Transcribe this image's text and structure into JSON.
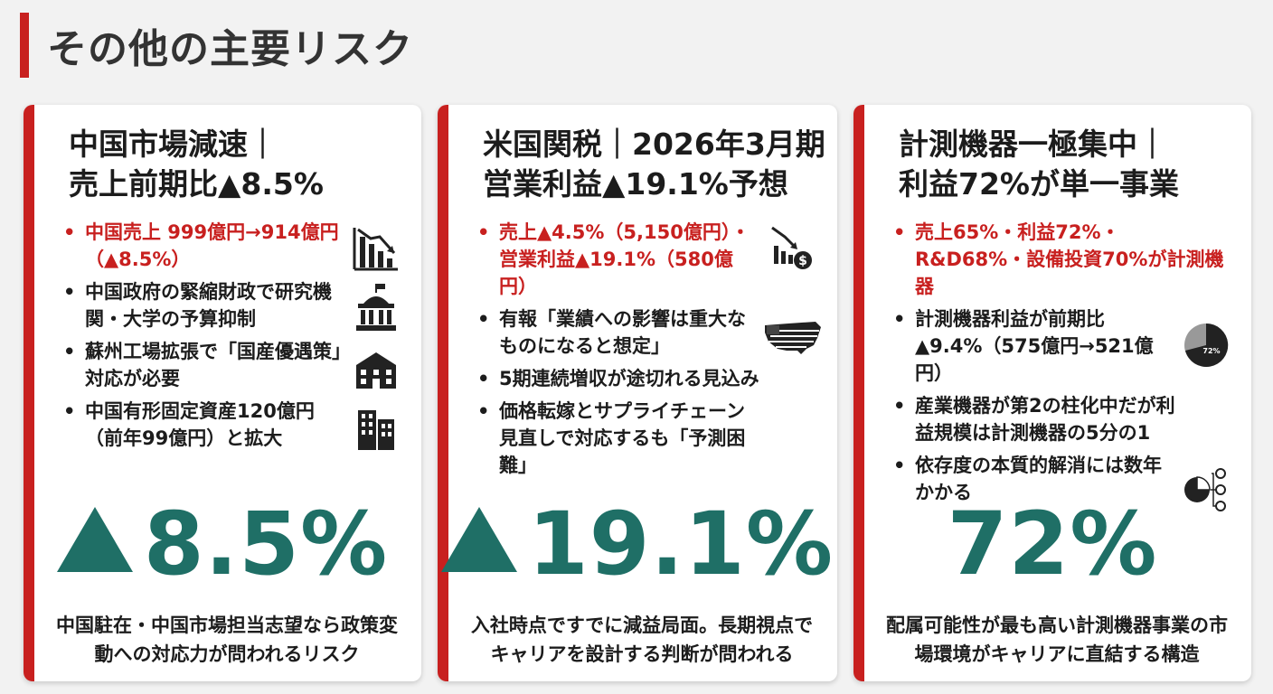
{
  "page": {
    "title": "その他の主要リスク"
  },
  "colors": {
    "accent": "#c8201f",
    "teal": "#1f6f66",
    "text": "#1c1c1c"
  },
  "cards": [
    {
      "head": [
        "中国市場減速｜",
        "売上前期比▲8.5%"
      ],
      "bullets": [
        {
          "text": "中国売上 999億円→914億円（▲8.5%）",
          "red": true,
          "icon": "declining-bar-chart-icon"
        },
        {
          "text": "中国政府の緊縮財政で研究機関・大学の予算抑制",
          "red": false,
          "icon": "government-building-icon"
        },
        {
          "text": "蘇州工場拡張で「国産優遇策」対応が必要",
          "red": false,
          "icon": "factory-icon"
        },
        {
          "text": "中国有形固定資産120億円（前年99億円）と拡大",
          "red": false,
          "icon": "office-building-icon"
        }
      ],
      "big": "8.5%",
      "big_has_triangle": true,
      "foot": "中国駐在・中国市場担当志望なら政策変動への対応力が問われるリスク"
    },
    {
      "head": [
        "米国関税｜2026年3月期",
        "営業利益▲19.1%予想"
      ],
      "bullets": [
        {
          "text": "売上▲4.5%（5,150億円）・営業利益▲19.1%（580億円）",
          "red": true,
          "icon": "declining-chart-dollar-icon"
        },
        {
          "text": "有報「業績への影響は重大なものになると想定」",
          "red": false,
          "icon": "us-flag-map-icon"
        },
        {
          "text": "5期連続増収が途切れる見込み",
          "red": false,
          "icon": ""
        },
        {
          "text": "価格転嫁とサプライチェーン見直しで対応するも「予測困難」",
          "red": false,
          "icon": ""
        }
      ],
      "big": "19.1%",
      "big_has_triangle": true,
      "foot": "入社時点ですでに減益局面。長期視点でキャリアを設計する判断が問われる"
    },
    {
      "head": [
        "計測機器一極集中｜",
        "利益72%が単一事業"
      ],
      "bullets": [
        {
          "text": "売上65%・利益72%・R&D68%・設備投資70%が計測機器",
          "red": true,
          "icon": ""
        },
        {
          "text": "計測機器利益が前期比▲9.4%（575億円→521億円）",
          "red": false,
          "icon": "pie-chart-icon",
          "icon_label": "72%"
        },
        {
          "text": "産業機器が第2の柱化中だが利益規模は計測機器の5分の1",
          "red": false,
          "icon": ""
        },
        {
          "text": "依存度の本質的解消には数年かかる",
          "red": false,
          "icon": "pie-chart-network-icon"
        }
      ],
      "big": "72%",
      "big_has_triangle": false,
      "foot": "配属可能性が最も高い計測機器事業の市場環境がキャリアに直結する構造"
    }
  ]
}
